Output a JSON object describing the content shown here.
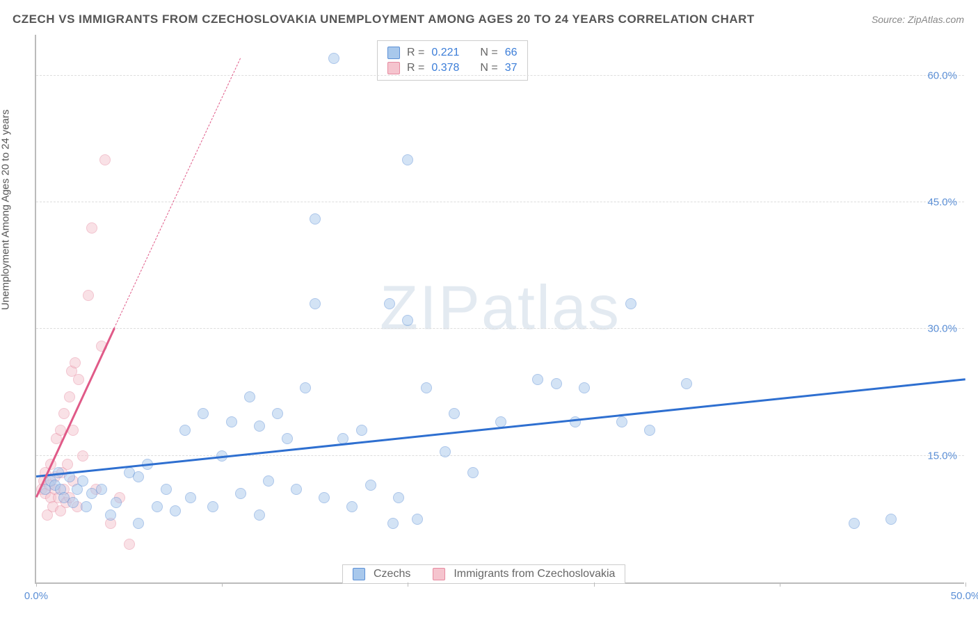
{
  "title": "CZECH VS IMMIGRANTS FROM CZECHOSLOVAKIA UNEMPLOYMENT AMONG AGES 20 TO 24 YEARS CORRELATION CHART",
  "source": "Source: ZipAtlas.com",
  "watermark_a": "ZIP",
  "watermark_b": "atlas",
  "y_axis_label": "Unemployment Among Ages 20 to 24 years",
  "chart": {
    "type": "scatter",
    "background_color": "#ffffff",
    "grid_color": "#dddddd",
    "axis_color": "#bbbbbb",
    "tick_label_color": "#5b8fd6",
    "title_fontsize": 17,
    "label_fontsize": 15,
    "xlim": [
      0,
      50
    ],
    "ylim": [
      0,
      65
    ],
    "x_ticks": [
      0,
      10,
      20,
      30,
      40,
      50
    ],
    "x_tick_labels": {
      "0": "0.0%",
      "50": "50.0%"
    },
    "y_ticks": [
      15,
      30,
      45,
      60
    ],
    "y_tick_labels": {
      "15": "15.0%",
      "30": "30.0%",
      "45": "45.0%",
      "60": "60.0%"
    },
    "marker_radius": 8,
    "marker_opacity": 0.5,
    "series": {
      "czechs": {
        "label": "Czechs",
        "color_fill": "#a8c8ec",
        "color_stroke": "#5b8fd6",
        "trend_color": "#2e6fd0",
        "trend_width": 2.5,
        "r": "0.221",
        "n": "66",
        "trend_start": [
          0,
          12.5
        ],
        "trend_end": [
          50,
          24
        ],
        "points": [
          [
            0.5,
            11
          ],
          [
            0.8,
            12
          ],
          [
            1,
            11.5
          ],
          [
            1.2,
            13
          ],
          [
            1.3,
            11
          ],
          [
            1.5,
            10
          ],
          [
            1.8,
            12.5
          ],
          [
            2,
            9.5
          ],
          [
            2.2,
            11
          ],
          [
            2.5,
            12
          ],
          [
            2.7,
            9
          ],
          [
            3,
            10.5
          ],
          [
            3.5,
            11
          ],
          [
            4,
            8
          ],
          [
            4.3,
            9.5
          ],
          [
            5,
            13
          ],
          [
            5.5,
            12.5
          ],
          [
            5.5,
            7
          ],
          [
            6,
            14
          ],
          [
            6.5,
            9
          ],
          [
            7,
            11
          ],
          [
            7.5,
            8.5
          ],
          [
            8,
            18
          ],
          [
            8.3,
            10
          ],
          [
            9,
            20
          ],
          [
            9.5,
            9
          ],
          [
            10,
            15
          ],
          [
            10.5,
            19
          ],
          [
            11,
            10.5
          ],
          [
            11.5,
            22
          ],
          [
            12,
            18.5
          ],
          [
            12,
            8
          ],
          [
            12.5,
            12
          ],
          [
            13,
            20
          ],
          [
            13.5,
            17
          ],
          [
            14,
            11
          ],
          [
            14.5,
            23
          ],
          [
            15,
            33
          ],
          [
            15,
            43
          ],
          [
            15.5,
            10
          ],
          [
            16,
            62
          ],
          [
            16.5,
            17
          ],
          [
            17,
            9
          ],
          [
            17.5,
            18
          ],
          [
            18,
            11.5
          ],
          [
            19,
            33
          ],
          [
            19.2,
            7
          ],
          [
            19.5,
            10
          ],
          [
            20,
            31
          ],
          [
            20,
            50
          ],
          [
            20.5,
            7.5
          ],
          [
            21,
            23
          ],
          [
            22,
            15.5
          ],
          [
            22.5,
            20
          ],
          [
            23.5,
            13
          ],
          [
            25,
            19
          ],
          [
            27,
            24
          ],
          [
            28,
            23.5
          ],
          [
            29,
            19
          ],
          [
            29.5,
            23
          ],
          [
            31.5,
            19
          ],
          [
            32,
            33
          ],
          [
            33,
            18
          ],
          [
            35,
            23.5
          ],
          [
            44,
            7
          ],
          [
            46,
            7.5
          ]
        ]
      },
      "immigrants": {
        "label": "Immigrants from Czechoslovakia",
        "color_fill": "#f5c4ce",
        "color_stroke": "#e68aa0",
        "trend_color": "#e05a88",
        "trend_width": 2.5,
        "r": "0.378",
        "n": "37",
        "trend_start": [
          0,
          10
        ],
        "trend_end_solid": [
          4.2,
          30
        ],
        "trend_end_dash": [
          11,
          62
        ],
        "points": [
          [
            0.3,
            11
          ],
          [
            0.4,
            12
          ],
          [
            0.5,
            10.5
          ],
          [
            0.5,
            13
          ],
          [
            0.6,
            8
          ],
          [
            0.7,
            11.5
          ],
          [
            0.8,
            10
          ],
          [
            0.8,
            14
          ],
          [
            0.9,
            9
          ],
          [
            1,
            12.5
          ],
          [
            1,
            11
          ],
          [
            1.1,
            17
          ],
          [
            1.2,
            10
          ],
          [
            1.3,
            18
          ],
          [
            1.3,
            8.5
          ],
          [
            1.4,
            13
          ],
          [
            1.5,
            11
          ],
          [
            1.5,
            20
          ],
          [
            1.6,
            9.5
          ],
          [
            1.7,
            14
          ],
          [
            1.8,
            22
          ],
          [
            1.8,
            10
          ],
          [
            1.9,
            25
          ],
          [
            2,
            18
          ],
          [
            2,
            12
          ],
          [
            2.1,
            26
          ],
          [
            2.2,
            9
          ],
          [
            2.3,
            24
          ],
          [
            2.5,
            15
          ],
          [
            2.8,
            34
          ],
          [
            3,
            42
          ],
          [
            3.2,
            11
          ],
          [
            3.5,
            28
          ],
          [
            3.7,
            50
          ],
          [
            4,
            7
          ],
          [
            4.5,
            10
          ],
          [
            5,
            4.5
          ]
        ]
      }
    }
  },
  "stats_labels": {
    "r": "R  =",
    "n": "N  ="
  },
  "legend": {
    "czechs": "Czechs",
    "immigrants": "Immigrants from Czechoslovakia"
  }
}
